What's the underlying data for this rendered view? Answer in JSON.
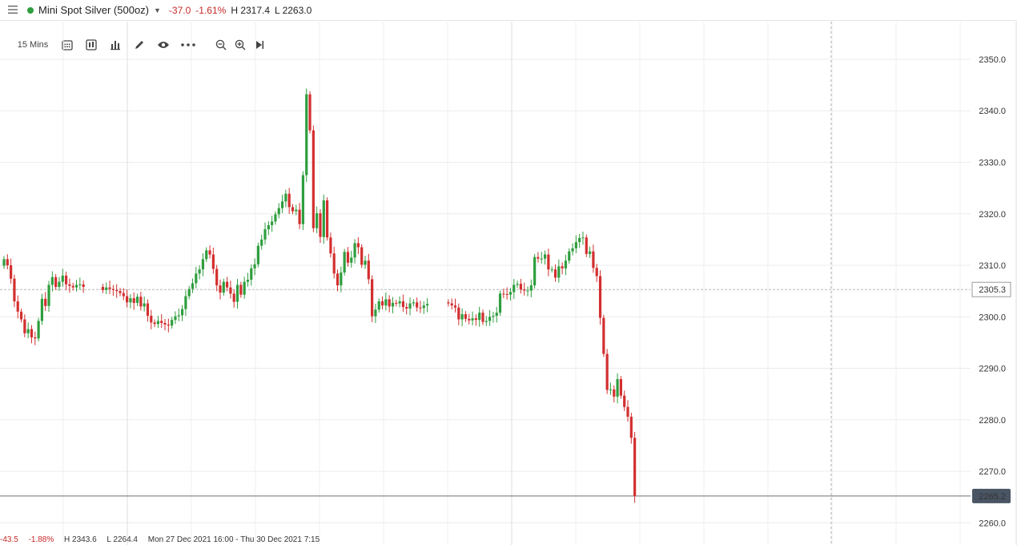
{
  "header": {
    "instrument": "Mini Spot Silver (500oz)",
    "change": "-37.0",
    "change_pct": "-1.61%",
    "high": "H 2317.4",
    "low": "L 2263.0",
    "status_color": "#2e9e3e",
    "negative_color": "#c62828"
  },
  "toolbar": {
    "interval": "15 Mins",
    "icons": [
      "calendar-icon",
      "candle-type-icon",
      "bar-chart-icon",
      "pencil-icon",
      "eye-icon",
      "more-icon",
      "zoom-out-icon",
      "zoom-in-icon",
      "scroll-end-icon"
    ]
  },
  "footer": {
    "change": "-43.5",
    "change_pct": "-1.88%",
    "high": "H 2343.6",
    "low": "L 2264.4",
    "range": "Mon 27 Dec 2021 16:00 - Thu 30 Dec 2021 7:15"
  },
  "chart_data": {
    "type": "candlestick",
    "instrument": "Mini Spot Silver (500oz)",
    "interval": "15 Mins",
    "ylim": [
      2256,
      2357
    ],
    "y_ticks": [
      2260.0,
      2270.0,
      2280.0,
      2290.0,
      2300.0,
      2310.0,
      2320.0,
      2330.0,
      2340.0,
      2350.0
    ],
    "y_tick_labels": [
      "2260.0",
      "2270.0",
      "2280.0",
      "2290.0",
      "2300.0",
      "2310.0",
      "2320.0",
      "2330.0",
      "2340.0",
      "2350.0"
    ],
    "grid": true,
    "up_color": "#2e9e3e",
    "down_color": "#d32f2f",
    "previous_close": 2305.3,
    "previous_close_label": "2305.3",
    "last_price": 2265.2,
    "last_price_label": "2265.2",
    "segments": [
      {
        "closes": [
          2311.2,
          2310.0,
          2307.4,
          2303.0,
          2301.0,
          2299.5,
          2296.8,
          2297.6,
          2296.0,
          2295.8,
          2299.2,
          2303.5,
          2302.1,
          2306.2,
          2307.7,
          2305.8,
          2306.8,
          2308.0,
          2306.3,
          2306.0,
          2305.7,
          2306.2,
          2306.3,
          2305.8
        ],
        "open": 2309.9
      },
      {
        "closes": [
          2305.2,
          2305.7,
          2305.4,
          2305.2,
          2305.0,
          2304.6,
          2304.0,
          2302.8,
          2303.6,
          2302.7,
          2303.9,
          2302.0,
          2302.6,
          2300.2,
          2298.9,
          2298.6,
          2299.2,
          2298.8,
          2298.5,
          2298.3,
          2299.4,
          2300.1,
          2300.3,
          2301.5,
          2304.0,
          2305.4,
          2306.5,
          2308.4,
          2309.2,
          2311.2,
          2312.9,
          2312.1,
          2309.3,
          2306.1,
          2304.7,
          2306.8,
          2305.7,
          2304.5,
          2302.9,
          2306.2,
          2304.3,
          2306.8,
          2307.2,
          2309.4,
          2310.2,
          2313.8,
          2315.0,
          2317.0,
          2317.8,
          2318.5,
          2319.9,
          2321.1,
          2322.4,
          2323.9,
          2321.3,
          2320.5,
          2320.8,
          2318.0,
          2327.5,
          2343.2,
          2336.2,
          2317.2,
          2320.1,
          2315.5,
          2322.6,
          2315.4,
          2312.3,
          2308.4,
          2306.1,
          2308.6,
          2312.6,
          2310.5,
          2311.5,
          2314.3,
          2313.5,
          2310.1,
          2310.9,
          2307.3,
          2300.1,
          2301.4,
          2303.0,
          2302.2,
          2303.4,
          2302.0,
          2302.7,
          2302.6,
          2303.0,
          2301.9,
          2301.6,
          2302.6,
          2302.8,
          2301.8,
          2301.7,
          2302.2,
          2302.5
        ],
        "open": 2305.8,
        "gap_before": 20
      },
      {
        "closes": [
          2302.6,
          2302.2,
          2301.8,
          2299.5,
          2300.5,
          2299.6,
          2299.3,
          2299.7,
          2299.4,
          2300.8,
          2299.0,
          2299.2,
          2300.0,
          2300.2,
          2300.8,
          2304.5,
          2304.4,
          2304.3,
          2304.8,
          2306.2,
          2306.4,
          2305.3,
          2305.1,
          2305.1,
          2306.1,
          2311.6,
          2311.3,
          2311.3,
          2312.1,
          2309.2,
          2309.2,
          2307.6,
          2309.8,
          2309.4,
          2310.9,
          2312.7,
          2313.3,
          2314.5,
          2315.3,
          2315.4,
          2312.2,
          2312.7,
          2309.5,
          2307.9,
          2299.8,
          2292.8,
          2285.8,
          2285.9,
          2284.5,
          2287.9,
          2284.7,
          2282.5,
          2280.6,
          2276.5,
          2265.2
        ],
        "open": 2302.8,
        "gap_before": 22
      }
    ],
    "time_axis": {
      "start": "Mon 27 Dec 2021 16:00",
      "end": "Thu 30 Dec 2021 7:15",
      "interval_minutes": 15
    }
  }
}
